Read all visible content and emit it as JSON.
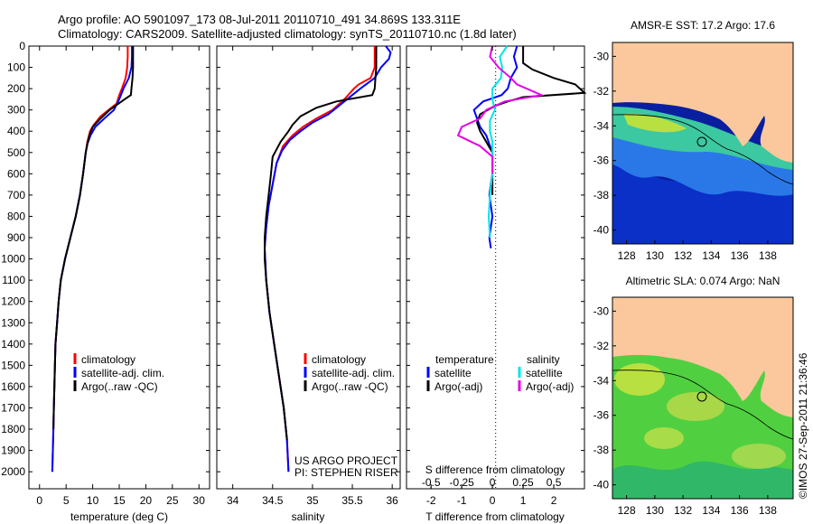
{
  "header": {
    "line1": "Argo profile: AO 5901097_173 08-Jul-2011 20110710_491 34.869S 133.311E",
    "line2": "Climatology: CARS2009. Satellite-adjusted climatology: synTS_20110710.nc (1.8d later)"
  },
  "side_stamp": "©IMOS 27-Sep-2011 21:36:46",
  "colors": {
    "climatology": "#ff0000",
    "satellite": "#0000ff",
    "argo": "#000000",
    "satellite_salinity": "#00e5e5",
    "argo_salinity": "#e600e6",
    "land": "#fac89c"
  },
  "chart_data": [
    {
      "type": "line",
      "id": "temperature",
      "xlabel": "temperature (deg C)",
      "ylabel": "",
      "xlim": [
        -2,
        32
      ],
      "ylim": [
        2080,
        0
      ],
      "y_reversed": true,
      "xticks": [
        "0",
        "5",
        "10",
        "15",
        "20",
        "25",
        "30"
      ],
      "yticks": [
        "0",
        "100",
        "200",
        "300",
        "400",
        "500",
        "600",
        "700",
        "800",
        "900",
        "1000",
        "1100",
        "1200",
        "1300",
        "1400",
        "1500",
        "1600",
        "1700",
        "1800",
        "1900",
        "2000"
      ],
      "legend": {
        "placement": "lower-center",
        "entries": [
          "climatology",
          "satellite-adj. clim.",
          "Argo(..raw -QC)"
        ]
      },
      "series": [
        {
          "name": "climatology",
          "color_key": "climatology",
          "points": [
            [
              16.6,
              0
            ],
            [
              16.6,
              50
            ],
            [
              16.5,
              100
            ],
            [
              16.2,
              150
            ],
            [
              15.5,
              200
            ],
            [
              15.0,
              230
            ],
            [
              14.5,
              270
            ],
            [
              13.0,
              300
            ],
            [
              11.5,
              330
            ],
            [
              10.2,
              370
            ],
            [
              9.5,
              400
            ],
            [
              9.0,
              450
            ],
            [
              8.7,
              500
            ],
            [
              8.2,
              600
            ],
            [
              7.6,
              700
            ],
            [
              6.8,
              800
            ],
            [
              5.8,
              900
            ],
            [
              4.8,
              1000
            ],
            [
              4.0,
              1100
            ],
            [
              3.6,
              1200
            ],
            [
              3.3,
              1300
            ],
            [
              3.0,
              1400
            ],
            [
              2.9,
              1500
            ],
            [
              2.8,
              1600
            ],
            [
              2.7,
              1700
            ],
            [
              2.6,
              1800
            ],
            [
              2.5,
              1900
            ],
            [
              2.4,
              2000
            ]
          ]
        },
        {
          "name": "satellite-adj. clim.",
          "color_key": "satellite",
          "points": [
            [
              17.4,
              0
            ],
            [
              17.4,
              50
            ],
            [
              17.3,
              100
            ],
            [
              16.8,
              150
            ],
            [
              15.8,
              200
            ],
            [
              15.0,
              250
            ],
            [
              14.0,
              300
            ],
            [
              12.2,
              340
            ],
            [
              10.5,
              380
            ],
            [
              9.6,
              420
            ],
            [
              9.0,
              460
            ],
            [
              8.7,
              500
            ],
            [
              8.2,
              600
            ],
            [
              7.6,
              700
            ],
            [
              6.8,
              800
            ],
            [
              5.8,
              900
            ],
            [
              4.8,
              1000
            ],
            [
              4.0,
              1100
            ],
            [
              3.6,
              1200
            ],
            [
              3.3,
              1300
            ],
            [
              3.0,
              1400
            ],
            [
              2.9,
              1500
            ],
            [
              2.8,
              1600
            ],
            [
              2.7,
              1700
            ],
            [
              2.6,
              1800
            ],
            [
              2.5,
              1900
            ],
            [
              2.4,
              2000
            ]
          ]
        },
        {
          "name": "Argo(..raw -QC)",
          "color_key": "argo",
          "points": [
            [
              17.6,
              0
            ],
            [
              17.6,
              100
            ],
            [
              17.5,
              150
            ],
            [
              17.3,
              200
            ],
            [
              17.2,
              230
            ],
            [
              16.0,
              250
            ],
            [
              13.2,
              300
            ],
            [
              11.5,
              340
            ],
            [
              10.0,
              380
            ],
            [
              9.4,
              420
            ],
            [
              9.0,
              460
            ],
            [
              8.7,
              500
            ],
            [
              8.2,
              600
            ],
            [
              7.6,
              700
            ],
            [
              6.8,
              800
            ],
            [
              5.8,
              900
            ],
            [
              4.8,
              1000
            ],
            [
              4.0,
              1100
            ],
            [
              3.6,
              1200
            ],
            [
              3.3,
              1300
            ],
            [
              3.0,
              1400
            ],
            [
              2.9,
              1500
            ],
            [
              2.8,
              1600
            ],
            [
              2.7,
              1700
            ],
            [
              2.6,
              1800
            ]
          ]
        }
      ]
    },
    {
      "type": "line",
      "id": "salinity",
      "xlabel": "salinity",
      "ylabel": "",
      "xlim": [
        33.8,
        36.1
      ],
      "ylim": [
        2080,
        0
      ],
      "y_reversed": true,
      "xticks": [
        "34",
        "34.5",
        "35",
        "35.5",
        "36"
      ],
      "legend": {
        "placement": "lower-right",
        "entries": [
          "climatology",
          "satellite-adj. clim.",
          "Argo(..raw -QC)"
        ]
      },
      "annotations": [
        "US ARGO PROJECT",
        "PI: STEPHEN RISER"
      ],
      "series": [
        {
          "name": "climatology",
          "color_key": "climatology",
          "points": [
            [
              35.78,
              0
            ],
            [
              35.78,
              100
            ],
            [
              35.73,
              150
            ],
            [
              35.58,
              180
            ],
            [
              35.52,
              200
            ],
            [
              35.4,
              250
            ],
            [
              35.25,
              300
            ],
            [
              35.05,
              340
            ],
            [
              34.88,
              380
            ],
            [
              34.75,
              420
            ],
            [
              34.63,
              470
            ],
            [
              34.55,
              550
            ],
            [
              34.5,
              650
            ],
            [
              34.45,
              750
            ],
            [
              34.42,
              850
            ],
            [
              34.4,
              950
            ],
            [
              34.42,
              1100
            ],
            [
              34.46,
              1250
            ],
            [
              34.52,
              1400
            ],
            [
              34.58,
              1550
            ],
            [
              34.64,
              1700
            ],
            [
              34.68,
              1850
            ],
            [
              34.7,
              2000
            ]
          ]
        },
        {
          "name": "satellite-adj. clim.",
          "color_key": "satellite",
          "points": [
            [
              35.92,
              0
            ],
            [
              35.98,
              30
            ],
            [
              35.96,
              60
            ],
            [
              35.86,
              100
            ],
            [
              35.78,
              150
            ],
            [
              35.6,
              200
            ],
            [
              35.4,
              260
            ],
            [
              35.2,
              320
            ],
            [
              35.0,
              360
            ],
            [
              34.85,
              400
            ],
            [
              34.72,
              440
            ],
            [
              34.62,
              490
            ],
            [
              34.55,
              550
            ],
            [
              34.5,
              650
            ],
            [
              34.45,
              750
            ],
            [
              34.42,
              850
            ],
            [
              34.4,
              950
            ],
            [
              34.42,
              1100
            ],
            [
              34.46,
              1250
            ],
            [
              34.52,
              1400
            ],
            [
              34.58,
              1550
            ],
            [
              34.64,
              1700
            ],
            [
              34.68,
              1850
            ],
            [
              34.7,
              2000
            ]
          ]
        },
        {
          "name": "Argo(..raw -QC)",
          "color_key": "argo",
          "points": [
            [
              35.8,
              0
            ],
            [
              35.8,
              100
            ],
            [
              35.79,
              150
            ],
            [
              35.78,
              200
            ],
            [
              35.75,
              230
            ],
            [
              35.3,
              260
            ],
            [
              35.05,
              290
            ],
            [
              34.85,
              330
            ],
            [
              34.75,
              370
            ],
            [
              34.7,
              400
            ],
            [
              34.6,
              450
            ],
            [
              34.5,
              520
            ],
            [
              34.48,
              600
            ],
            [
              34.45,
              700
            ],
            [
              34.42,
              800
            ],
            [
              34.4,
              900
            ],
            [
              34.4,
              1000
            ],
            [
              34.42,
              1100
            ],
            [
              34.46,
              1250
            ],
            [
              34.52,
              1400
            ],
            [
              34.58,
              1550
            ],
            [
              34.64,
              1700
            ],
            [
              34.68,
              1850
            ]
          ]
        }
      ]
    },
    {
      "type": "line",
      "id": "difference",
      "xlabel": "T difference from climatology",
      "x2label": "S difference from climatology",
      "ylabel": "",
      "xlim": [
        -2.8,
        3.0
      ],
      "x2lim": [
        -0.7,
        0.75
      ],
      "ylim": [
        2080,
        0
      ],
      "y_reversed": true,
      "xticks": [
        "-2",
        "-1",
        "0",
        "1",
        "2"
      ],
      "x2ticks": [
        "-0.5",
        "-0.25",
        "0",
        "0.25",
        "0.5"
      ],
      "legend": {
        "placement": "lower-center",
        "headers": [
          "temperature",
          "salinity"
        ],
        "entries": [
          "satellite",
          "Argo(-adj)",
          "satellite",
          "Argo(-adj)"
        ]
      },
      "series": [
        {
          "name": "temperature satellite",
          "color_key": "satellite",
          "axis": "T",
          "points": [
            [
              0.8,
              0
            ],
            [
              0.7,
              50
            ],
            [
              0.8,
              100
            ],
            [
              0.6,
              150
            ],
            [
              0.5,
              200
            ],
            [
              0.3,
              230
            ],
            [
              -0.3,
              260
            ],
            [
              -0.6,
              300
            ],
            [
              -0.5,
              340
            ],
            [
              -0.4,
              380
            ],
            [
              -0.2,
              420
            ],
            [
              -0.1,
              460
            ],
            [
              0.0,
              500
            ],
            [
              0.0,
              600
            ],
            [
              -0.1,
              700
            ],
            [
              0.0,
              800
            ],
            [
              -0.1,
              900
            ],
            [
              -0.05,
              950
            ]
          ]
        },
        {
          "name": "temperature Argo(-adj)",
          "color_key": "argo",
          "axis": "T",
          "points": [
            [
              1.0,
              0
            ],
            [
              1.0,
              80
            ],
            [
              1.3,
              110
            ],
            [
              2.0,
              150
            ],
            [
              2.7,
              180
            ],
            [
              3.0,
              220
            ],
            [
              1.0,
              240
            ],
            [
              0.5,
              260
            ],
            [
              0.1,
              280
            ],
            [
              -0.4,
              320
            ],
            [
              -0.5,
              360
            ],
            [
              -0.4,
              400
            ],
            [
              -0.2,
              450
            ],
            [
              0.0,
              500
            ],
            [
              0.0,
              600
            ],
            [
              0.0,
              700
            ]
          ]
        },
        {
          "name": "salinity satellite",
          "color_key": "satellite_salinity",
          "axis": "S",
          "points": [
            [
              0.12,
              0
            ],
            [
              0.06,
              50
            ],
            [
              0.08,
              100
            ],
            [
              0.07,
              150
            ],
            [
              0.0,
              200
            ],
            [
              0.0,
              250
            ],
            [
              0.02,
              300
            ],
            [
              -0.02,
              350
            ],
            [
              -0.02,
              400
            ],
            [
              0.0,
              450
            ],
            [
              0.0,
              500
            ],
            [
              0.0,
              600
            ],
            [
              -0.02,
              700
            ],
            [
              -0.03,
              800
            ],
            [
              -0.02,
              900
            ]
          ]
        },
        {
          "name": "salinity Argo(-adj)",
          "color_key": "argo_salinity",
          "axis": "S",
          "points": [
            [
              0.0,
              0
            ],
            [
              -0.02,
              50
            ],
            [
              0.05,
              100
            ],
            [
              0.15,
              150
            ],
            [
              0.2,
              180
            ],
            [
              0.4,
              230
            ],
            [
              0.1,
              260
            ],
            [
              -0.05,
              300
            ],
            [
              -0.1,
              340
            ],
            [
              -0.25,
              380
            ],
            [
              -0.28,
              420
            ],
            [
              -0.1,
              470
            ],
            [
              0.0,
              520
            ],
            [
              0.0,
              600
            ]
          ]
        }
      ]
    },
    {
      "type": "heatmap",
      "id": "sst-map",
      "title": "AMSR-E SST: 17.2 Argo: 17.6",
      "xticks": [
        "128",
        "130",
        "132",
        "134",
        "136",
        "138"
      ],
      "yticks": [
        "-30",
        "-32",
        "-34",
        "-36",
        "-38",
        "-40"
      ],
      "xlim": [
        127.0,
        139.8
      ],
      "ylim": [
        -40.8,
        -29.2
      ],
      "marker": {
        "lon": 133.3,
        "lat": -34.87
      }
    },
    {
      "type": "heatmap",
      "id": "sla-map",
      "title": "Altimetric SLA: 0.074 Argo: NaN",
      "xticks": [
        "128",
        "130",
        "132",
        "134",
        "136",
        "138"
      ],
      "yticks": [
        "-30",
        "-32",
        "-34",
        "-36",
        "-38",
        "-40"
      ],
      "xlim": [
        127.0,
        139.8
      ],
      "ylim": [
        -40.8,
        -29.2
      ],
      "marker": {
        "lon": 133.3,
        "lat": -34.87
      }
    }
  ]
}
